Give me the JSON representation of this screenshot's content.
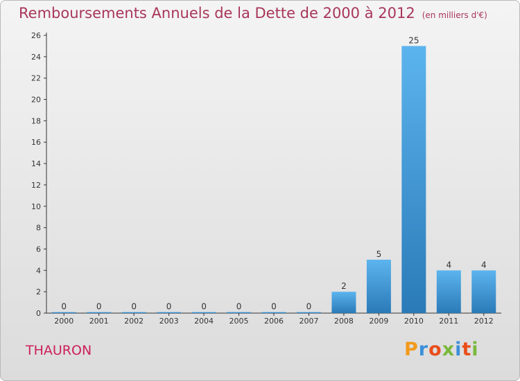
{
  "header": {
    "title": "Remboursements Annuels de la Dette de 2000 à 2012",
    "unit": "(en milliers d'€)"
  },
  "footer": {
    "commune": "THAURON",
    "logo_text": "Proxiti"
  },
  "colors": {
    "title": "#a8365a",
    "commune": "#cc1f5a",
    "bar_top": "#5cb4ee",
    "bar_bottom": "#2a7ab8",
    "axis": "#333333"
  },
  "chart_data": {
    "type": "bar",
    "title": "Remboursements Annuels de la Dette de 2000 à 2012",
    "subtitle": "(en milliers d'€)",
    "xlabel": "",
    "ylabel": "",
    "categories": [
      "2000",
      "2001",
      "2002",
      "2003",
      "2004",
      "2005",
      "2006",
      "2007",
      "2008",
      "2009",
      "2010",
      "2011",
      "2012"
    ],
    "values": [
      0,
      0,
      0,
      0,
      0,
      0,
      0,
      0,
      2,
      5,
      25,
      4,
      4
    ],
    "data_labels": [
      "0",
      "0",
      "0",
      "0",
      "0",
      "0",
      "0",
      "0",
      "2",
      "5",
      "25",
      "4",
      "4"
    ],
    "ylim": [
      0,
      26
    ],
    "yticks": [
      "0",
      "2",
      "4",
      "6",
      "8",
      "10",
      "12",
      "14",
      "16",
      "18",
      "20",
      "22",
      "24",
      "26"
    ],
    "grid": false,
    "legend": "none"
  }
}
